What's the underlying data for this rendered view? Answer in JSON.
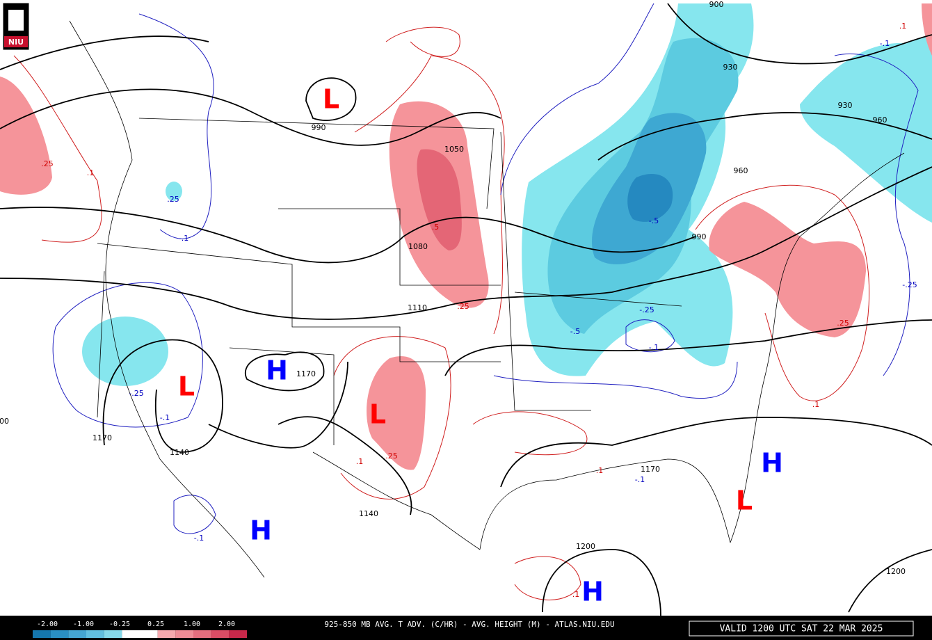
{
  "logo": "NIU",
  "title": "925-850 MB AVG. T ADV. (C/HR) - AVG. HEIGHT (M) - ATLAS.NIU.EDU",
  "valid": "VALID 1200 UTC SAT 22 MAR 2025",
  "legend": {
    "labels": [
      "-2.00",
      "-1.00",
      "-0.25",
      "0.25",
      "1.00",
      "2.00"
    ],
    "colors": [
      "#1577ae",
      "#2a8fc2",
      "#45a6d2",
      "#62bfdf",
      "#86d9ea",
      "#ffffff",
      "#ffffff",
      "#f6a9ae",
      "#ee8c96",
      "#e46e7e",
      "#d94d65",
      "#c8284a"
    ]
  },
  "centers": [
    {
      "label": "L",
      "color": "#ff0000"
    },
    {
      "label": "L",
      "color": "#ff0000"
    },
    {
      "label": "L",
      "color": "#ff0000"
    },
    {
      "label": "L",
      "color": "#ff0000"
    },
    {
      "label": "H",
      "color": "#0000ff"
    },
    {
      "label": "H",
      "color": "#0000ff"
    },
    {
      "label": "H",
      "color": "#0000ff"
    },
    {
      "label": "H",
      "color": "#0000ff"
    }
  ],
  "height_labels": [
    "990",
    "1050",
    "1080",
    "1110",
    "1170",
    "1170",
    "1140",
    "1140",
    "1200",
    "1200",
    "900",
    "930",
    "930",
    "960",
    "960",
    "990",
    "1170",
    "00"
  ],
  "warm_labels": [
    ".25",
    ".1",
    ".5",
    ".25",
    ".25",
    ".1",
    ".25",
    ".1",
    ".1",
    ".1",
    ".1"
  ],
  "cold_labels": [
    ".25",
    "-.1",
    "-.25",
    "-.1",
    "-.1",
    "-.25",
    "-.5",
    "-.25",
    "-.1",
    "-.1",
    "-.1",
    "-.5"
  ]
}
